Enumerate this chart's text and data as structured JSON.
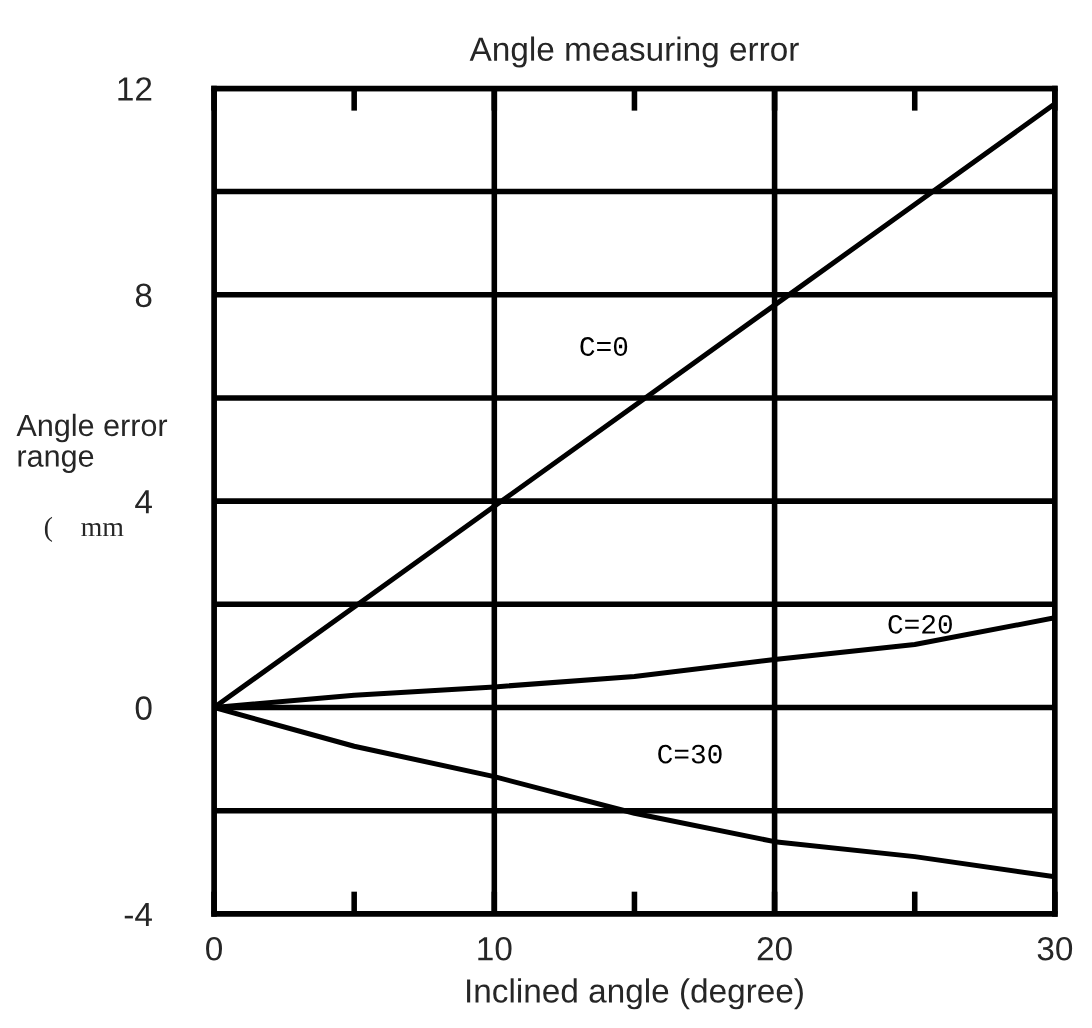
{
  "chart_data": {
    "type": "line",
    "title": "Angle measuring error",
    "xlabel": "Inclined angle (degree)",
    "ylabel": "Angle error\nrange",
    "annotations": [
      "(    mm"
    ],
    "x": [
      0,
      5,
      10,
      15,
      20,
      25,
      30
    ],
    "series": [
      {
        "name": "C=0",
        "color": "#000000",
        "values": [
          0,
          1.95,
          3.9,
          5.85,
          7.8,
          9.75,
          11.7
        ]
      },
      {
        "name": "C=20",
        "color": "#000000",
        "values": [
          0,
          0.24,
          0.4,
          0.6,
          0.93,
          1.22,
          1.74
        ]
      },
      {
        "name": "C=30",
        "color": "#000000",
        "values": [
          0,
          -0.75,
          -1.34,
          -2.05,
          -2.6,
          -2.89,
          -3.28
        ]
      }
    ],
    "xlim": [
      0,
      30
    ],
    "ylim": [
      -4,
      12
    ],
    "xticks": [
      0,
      {
        "value": 5,
        "label": null
      },
      10,
      {
        "value": 15,
        "label": null
      },
      20,
      {
        "value": 25,
        "label": null
      },
      30
    ],
    "yticks": [
      -4,
      {
        "value": -2,
        "label": null
      },
      0,
      {
        "value": 2,
        "label": null
      },
      4,
      {
        "value": 6,
        "label": null
      },
      8,
      {
        "value": 10,
        "label": null
      },
      12
    ],
    "grid": true,
    "legend": false,
    "marker": "none",
    "line_style": "solid"
  }
}
